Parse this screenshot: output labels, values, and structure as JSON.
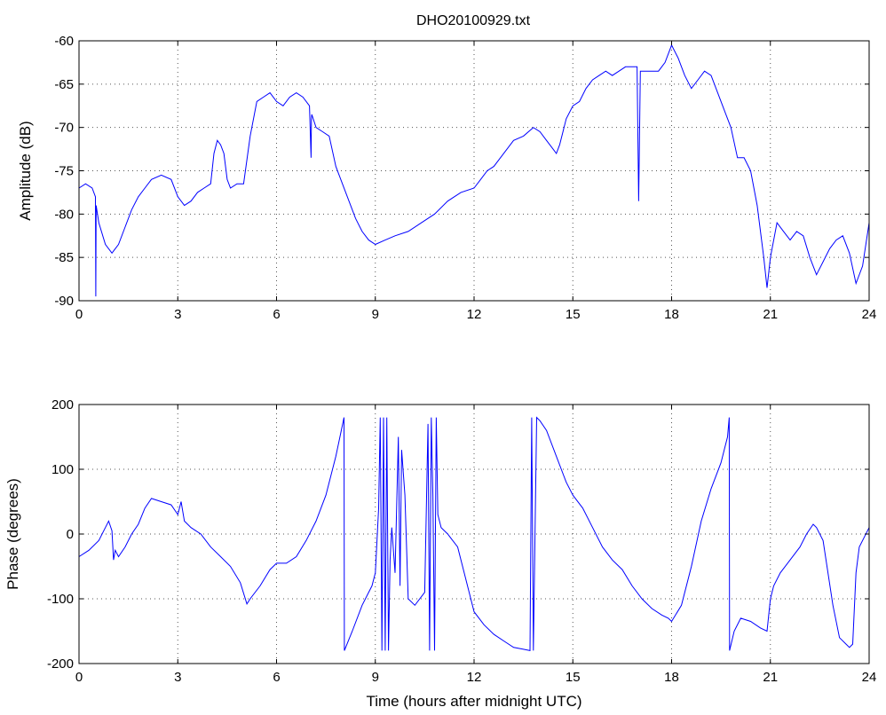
{
  "title": "DHO20100929.txt",
  "colors": {
    "series": "#0000ff"
  },
  "chart_data": [
    {
      "id": "amplitude",
      "type": "line",
      "title": "DHO20100929.txt",
      "xlabel": "",
      "ylabel": "Amplitude (dB)",
      "xlim": [
        0,
        24
      ],
      "ylim": [
        -90,
        -60
      ],
      "xticks": [
        0,
        3,
        6,
        9,
        12,
        15,
        18,
        21,
        24
      ],
      "yticks": [
        -90,
        -85,
        -80,
        -75,
        -70,
        -65,
        -60
      ],
      "grid": true,
      "series": [
        {
          "x": [
            0,
            0.2,
            0.4,
            0.5,
            0.51,
            0.52,
            0.6,
            0.8,
            1.0,
            1.2,
            1.4,
            1.6,
            1.8,
            2.0,
            2.2,
            2.5,
            2.8,
            3.0,
            3.2,
            3.4,
            3.6,
            3.8,
            4.0,
            4.1,
            4.2,
            4.3,
            4.4,
            4.5,
            4.6,
            4.8,
            5.0,
            5.2,
            5.4,
            5.6,
            5.8,
            6.0,
            6.2,
            6.4,
            6.6,
            6.8,
            7.0,
            7.05,
            7.06,
            7.07,
            7.2,
            7.4,
            7.6,
            7.8,
            8.0,
            8.2,
            8.4,
            8.6,
            8.8,
            9.0,
            9.3,
            9.6,
            10.0,
            10.4,
            10.8,
            11.2,
            11.6,
            12.0,
            12.2,
            12.4,
            12.6,
            12.8,
            13.0,
            13.2,
            13.5,
            13.8,
            14.0,
            14.2,
            14.4,
            14.5,
            14.6,
            14.8,
            15.0,
            15.2,
            15.4,
            15.6,
            15.8,
            16.0,
            16.2,
            16.4,
            16.6,
            16.8,
            16.95,
            17.0,
            17.05,
            17.2,
            17.4,
            17.6,
            17.8,
            18.0,
            18.2,
            18.4,
            18.6,
            18.8,
            19.0,
            19.2,
            19.4,
            19.6,
            19.8,
            20.0,
            20.2,
            20.4,
            20.6,
            20.8,
            20.9,
            21.0,
            21.2,
            21.4,
            21.6,
            21.8,
            22.0,
            22.2,
            22.4,
            22.6,
            22.8,
            23.0,
            23.2,
            23.4,
            23.6,
            23.8,
            24.0
          ],
          "y": [
            -77,
            -76.5,
            -77,
            -78,
            -89.5,
            -79,
            -81,
            -83.5,
            -84.5,
            -83.5,
            -81.5,
            -79.5,
            -78,
            -77,
            -76,
            -75.5,
            -76,
            -78,
            -79,
            -78.5,
            -77.5,
            -77,
            -76.5,
            -73,
            -71.5,
            -72,
            -73,
            -76,
            -77,
            -76.5,
            -76.5,
            -71,
            -67,
            -66.5,
            -66,
            -67,
            -67.5,
            -66.5,
            -66,
            -66.5,
            -67.5,
            -73.5,
            -69,
            -68.5,
            -70,
            -70.5,
            -71,
            -74.5,
            -76.5,
            -78.5,
            -80.5,
            -82,
            -83,
            -83.5,
            -83,
            -82.5,
            -82,
            -81,
            -80,
            -78.5,
            -77.5,
            -77,
            -76,
            -75,
            -74.5,
            -73.5,
            -72.5,
            -71.5,
            -71,
            -70,
            -70.5,
            -71.5,
            -72.5,
            -73,
            -72,
            -69,
            -67.5,
            -67,
            -65.5,
            -64.5,
            -64,
            -63.5,
            -64,
            -63.5,
            -63,
            -63,
            -63,
            -78.5,
            -63.5,
            -63.5,
            -63.5,
            -63.5,
            -62.5,
            -60.5,
            -62,
            -64,
            -65.5,
            -64.5,
            -63.5,
            -64,
            -66,
            -68,
            -70,
            -73.5,
            -73.5,
            -75,
            -79,
            -85,
            -88.5,
            -85,
            -81,
            -82,
            -83,
            -82,
            -82.5,
            -85,
            -87,
            -85.5,
            -84,
            -83,
            -82.5,
            -84.5,
            -88,
            -86,
            -81
          ]
        }
      ]
    },
    {
      "id": "phase",
      "type": "line",
      "title": "",
      "xlabel": "Time (hours after midnight UTC)",
      "ylabel": "Phase (degrees)",
      "xlim": [
        0,
        24
      ],
      "ylim": [
        -200,
        200
      ],
      "xticks": [
        0,
        3,
        6,
        9,
        12,
        15,
        18,
        21,
        24
      ],
      "yticks": [
        -200,
        -100,
        0,
        100,
        200
      ],
      "grid": true,
      "series": [
        {
          "x": [
            0,
            0.3,
            0.6,
            0.8,
            0.9,
            1.0,
            1.05,
            1.1,
            1.2,
            1.4,
            1.6,
            1.8,
            2.0,
            2.2,
            2.5,
            2.8,
            3.0,
            3.1,
            3.2,
            3.4,
            3.7,
            4.0,
            4.3,
            4.6,
            4.9,
            5.1,
            5.2,
            5.5,
            5.8,
            6.0,
            6.3,
            6.6,
            6.9,
            7.2,
            7.5,
            7.8,
            8.05,
            8.06,
            8.3,
            8.6,
            8.9,
            9.0,
            9.1,
            9.15,
            9.2,
            9.25,
            9.3,
            9.35,
            9.4,
            9.45,
            9.5,
            9.6,
            9.7,
            9.75,
            9.8,
            9.9,
            10.0,
            10.2,
            10.5,
            10.6,
            10.65,
            10.7,
            10.75,
            10.8,
            10.85,
            10.9,
            11.0,
            11.2,
            11.5,
            11.8,
            12.0,
            12.3,
            12.6,
            12.9,
            13.2,
            13.5,
            13.7,
            13.75,
            13.8,
            13.9,
            14.0,
            14.2,
            14.5,
            14.8,
            15.0,
            15.3,
            15.6,
            15.9,
            16.2,
            16.5,
            16.8,
            17.1,
            17.4,
            17.7,
            17.9,
            18.0,
            18.3,
            18.6,
            18.9,
            19.2,
            19.5,
            19.7,
            19.75,
            19.76,
            19.9,
            20.1,
            20.4,
            20.7,
            20.9,
            21.0,
            21.1,
            21.3,
            21.6,
            21.9,
            22.1,
            22.3,
            22.4,
            22.6,
            22.9,
            23.1,
            23.3,
            23.4,
            23.5,
            23.6,
            23.7,
            24.0
          ],
          "y": [
            -35,
            -25,
            -10,
            10,
            20,
            5,
            -40,
            -25,
            -35,
            -20,
            0,
            15,
            40,
            55,
            50,
            45,
            30,
            50,
            20,
            10,
            0,
            -20,
            -35,
            -50,
            -75,
            -108,
            -100,
            -80,
            -55,
            -45,
            -45,
            -35,
            -10,
            20,
            60,
            120,
            180,
            -180,
            -150,
            -110,
            -80,
            -60,
            40,
            180,
            -180,
            180,
            -180,
            180,
            -180,
            -40,
            10,
            -60,
            150,
            -80,
            130,
            60,
            -100,
            -110,
            -90,
            170,
            -180,
            180,
            60,
            -180,
            180,
            30,
            10,
            0,
            -20,
            -80,
            -120,
            -140,
            -155,
            -165,
            -175,
            -178,
            -180,
            180,
            -180,
            180,
            175,
            160,
            120,
            80,
            60,
            40,
            10,
            -20,
            -40,
            -55,
            -80,
            -100,
            -115,
            -125,
            -130,
            -135,
            -110,
            -50,
            20,
            70,
            110,
            150,
            180,
            -180,
            -150,
            -130,
            -135,
            -145,
            -150,
            -100,
            -80,
            -60,
            -40,
            -20,
            0,
            15,
            10,
            -10,
            -110,
            -160,
            -170,
            -175,
            -170,
            -60,
            -20,
            10
          ]
        }
      ]
    }
  ]
}
